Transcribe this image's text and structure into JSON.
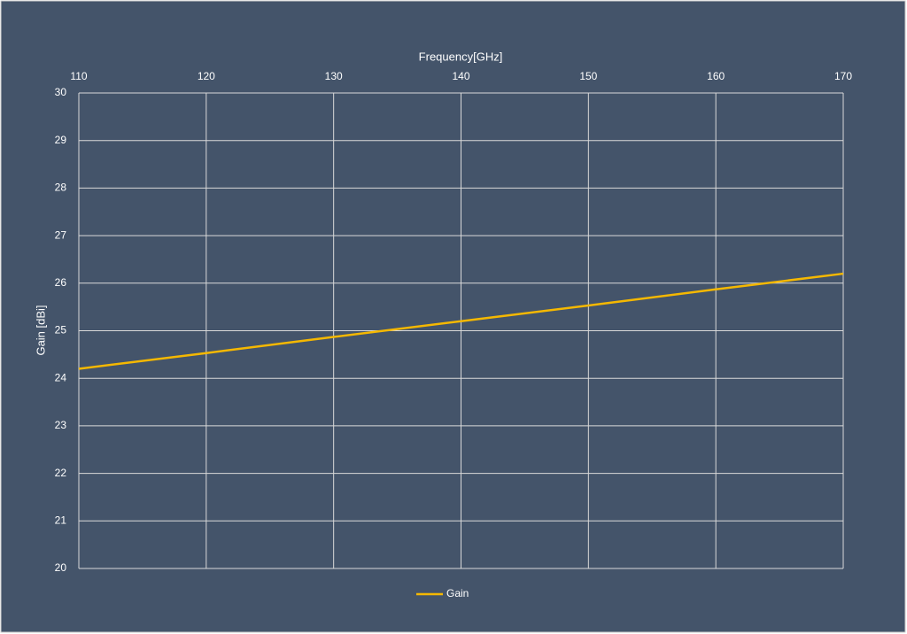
{
  "chart_data": {
    "type": "line",
    "x_label": "Frequency[GHz]",
    "y_label": "Gain [dBi]",
    "x": [
      110,
      120,
      130,
      140,
      150,
      160,
      170
    ],
    "series": [
      {
        "name": "Gain",
        "color": "#f5b800",
        "values": [
          24.2,
          24.53,
          24.87,
          25.2,
          25.53,
          25.87,
          26.2
        ]
      }
    ],
    "xlim": [
      110,
      170
    ],
    "xticks": [
      110,
      120,
      130,
      140,
      150,
      160,
      170
    ],
    "ylim": [
      20,
      30
    ],
    "yticks": [
      20,
      21,
      22,
      23,
      24,
      25,
      26,
      27,
      28,
      29,
      30
    ],
    "grid": true,
    "legend": "bottom"
  }
}
